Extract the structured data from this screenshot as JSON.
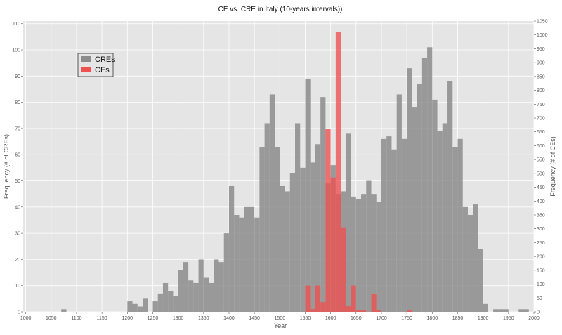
{
  "chart_data": {
    "type": "bar",
    "title": "CE vs. CRE in Italy (10-years intervals))",
    "xlabel": "Year",
    "ylabel_left": "Frequency (# of CREs)",
    "ylabel_right": "Frequency (# of CEs)",
    "xlim": [
      995,
      2000
    ],
    "ylim_left": [
      0,
      111
    ],
    "ylim_right": [
      0,
      1050
    ],
    "x_ticks": [
      1000,
      1050,
      1100,
      1150,
      1200,
      1250,
      1300,
      1350,
      1400,
      1450,
      1500,
      1550,
      1600,
      1650,
      1700,
      1750,
      1800,
      1850,
      1900,
      1950,
      2000
    ],
    "y_ticks_left": [
      0,
      10,
      20,
      30,
      40,
      50,
      60,
      70,
      80,
      90,
      100,
      110
    ],
    "y_ticks_right": [
      0,
      50,
      100,
      150,
      200,
      250,
      300,
      350,
      400,
      450,
      500,
      550,
      600,
      650,
      700,
      750,
      800,
      850,
      900,
      950,
      1000,
      1050
    ],
    "grid": true,
    "legend_position": "top-left",
    "background_color": "#e5e5e5",
    "series": [
      {
        "name": "CREs",
        "color": "#8c8c8c",
        "axis": "left",
        "bin_width": 10,
        "bins": [
          [
            1070,
            1
          ],
          [
            1200,
            4
          ],
          [
            1210,
            3
          ],
          [
            1220,
            2
          ],
          [
            1230,
            5
          ],
          [
            1250,
            4
          ],
          [
            1260,
            7
          ],
          [
            1270,
            11
          ],
          [
            1280,
            8
          ],
          [
            1290,
            6
          ],
          [
            1300,
            16
          ],
          [
            1310,
            19
          ],
          [
            1320,
            12
          ],
          [
            1330,
            11
          ],
          [
            1340,
            20
          ],
          [
            1350,
            13
          ],
          [
            1360,
            11
          ],
          [
            1370,
            20
          ],
          [
            1380,
            19
          ],
          [
            1390,
            30
          ],
          [
            1400,
            48
          ],
          [
            1410,
            37
          ],
          [
            1420,
            36
          ],
          [
            1430,
            40
          ],
          [
            1440,
            40
          ],
          [
            1450,
            36
          ],
          [
            1460,
            63
          ],
          [
            1470,
            72
          ],
          [
            1480,
            83
          ],
          [
            1490,
            63
          ],
          [
            1500,
            48
          ],
          [
            1510,
            46
          ],
          [
            1520,
            53
          ],
          [
            1530,
            72
          ],
          [
            1540,
            55
          ],
          [
            1550,
            89
          ],
          [
            1560,
            57
          ],
          [
            1570,
            64
          ],
          [
            1580,
            82
          ],
          [
            1590,
            49
          ],
          [
            1600,
            56
          ],
          [
            1610,
            45
          ],
          [
            1620,
            46
          ],
          [
            1630,
            68
          ],
          [
            1640,
            44
          ],
          [
            1650,
            43
          ],
          [
            1660,
            45
          ],
          [
            1670,
            50
          ],
          [
            1680,
            45
          ],
          [
            1690,
            42
          ],
          [
            1700,
            66
          ],
          [
            1710,
            67
          ],
          [
            1720,
            62
          ],
          [
            1730,
            83
          ],
          [
            1740,
            66
          ],
          [
            1750,
            93
          ],
          [
            1760,
            78
          ],
          [
            1770,
            87
          ],
          [
            1780,
            97
          ],
          [
            1790,
            101
          ],
          [
            1800,
            81
          ],
          [
            1810,
            69
          ],
          [
            1820,
            72
          ],
          [
            1830,
            88
          ],
          [
            1840,
            63
          ],
          [
            1850,
            66
          ],
          [
            1860,
            40
          ],
          [
            1870,
            37
          ],
          [
            1880,
            41
          ],
          [
            1890,
            24
          ],
          [
            1900,
            3
          ],
          [
            1920,
            1
          ],
          [
            1930,
            1
          ],
          [
            1940,
            1
          ],
          [
            1970,
            1
          ],
          [
            1980,
            1
          ]
        ]
      },
      {
        "name": "CEs",
        "color": "#f05050",
        "axis": "right",
        "bin_width": 10,
        "bins": [
          [
            1550,
            95
          ],
          [
            1560,
            10
          ],
          [
            1570,
            95
          ],
          [
            1580,
            35
          ],
          [
            1590,
            660
          ],
          [
            1600,
            485
          ],
          [
            1610,
            1010
          ],
          [
            1620,
            305
          ],
          [
            1630,
            20
          ],
          [
            1640,
            95
          ],
          [
            1650,
            5
          ],
          [
            1660,
            5
          ],
          [
            1680,
            65
          ],
          [
            1690,
            5
          ],
          [
            1750,
            5
          ]
        ]
      }
    ]
  }
}
